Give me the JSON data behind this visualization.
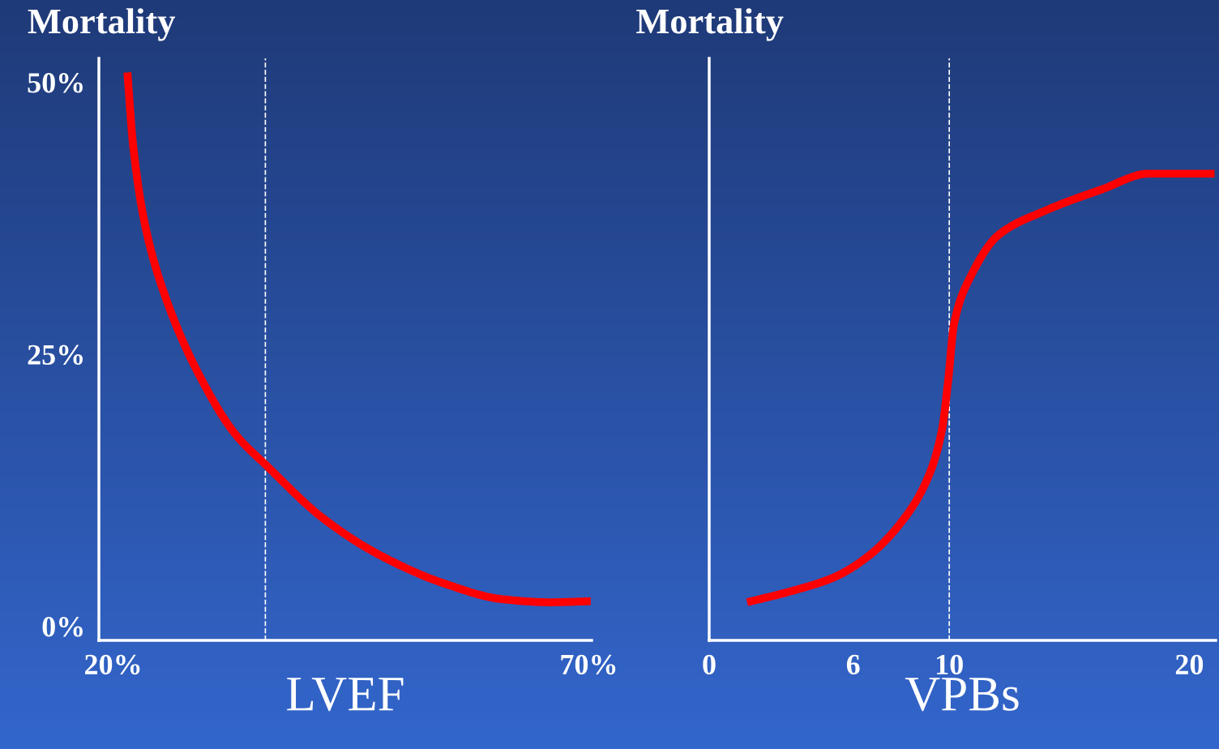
{
  "chart_data": [
    {
      "type": "line",
      "title": "Mortality",
      "xlabel": "LVEF",
      "xlim": [
        18.5,
        70.3
      ],
      "ylim": [
        -1.3,
        52.2
      ],
      "xticks": [
        {
          "value": 20,
          "label": "20%"
        },
        {
          "value": 70,
          "label": "70%"
        }
      ],
      "yticks": [
        {
          "value": 0,
          "label": "0%"
        },
        {
          "value": 25,
          "label": "25%"
        },
        {
          "value": 50,
          "label": "50%"
        }
      ],
      "series": [
        {
          "color": "#ff0000",
          "x": [
            21.5,
            22.1,
            23.4,
            25.9,
            29.4,
            32.8,
            36.2,
            42.1,
            48.1,
            54.9,
            60.8,
            65.9,
            70.2
          ],
          "values": [
            50.9,
            44.2,
            36.7,
            29.3,
            22.5,
            17.7,
            14.7,
            9.9,
            6.5,
            3.9,
            2.5,
            2.2,
            2.3
          ]
        }
      ],
      "ref_lines": [
        {
          "axis": "x",
          "value": 36,
          "color": "#ffffff",
          "line_style": "dashed"
        }
      ],
      "grid": false,
      "legend": false,
      "marker": "none",
      "line_style": "solid"
    },
    {
      "type": "line",
      "title": "Mortality",
      "xlabel": "VPBs",
      "xlim": [
        0,
        21.1
      ],
      "ylim": [
        -1.3,
        52.2
      ],
      "tick_labels": "x",
      "xticks": [
        0,
        6,
        10,
        20
      ],
      "series": [
        {
          "color": "#ff0000",
          "x": [
            1.58,
            3.54,
            5.2,
            6.66,
            8.12,
            9.1,
            9.7,
            9.95,
            10.2,
            10.9,
            12.07,
            14.0,
            16.4,
            18.3,
            21.05
          ],
          "values": [
            2.2,
            3.3,
            4.5,
            6.5,
            9.9,
            13.6,
            18.1,
            22.5,
            27.8,
            32.2,
            36.0,
            38.2,
            40.2,
            41.6,
            41.6
          ]
        }
      ],
      "ref_lines": [
        {
          "axis": "x",
          "value": 10,
          "color": "#ffffff",
          "line_style": "dashed"
        }
      ],
      "grid": false,
      "legend": false,
      "marker": "none",
      "line_style": "solid"
    }
  ]
}
